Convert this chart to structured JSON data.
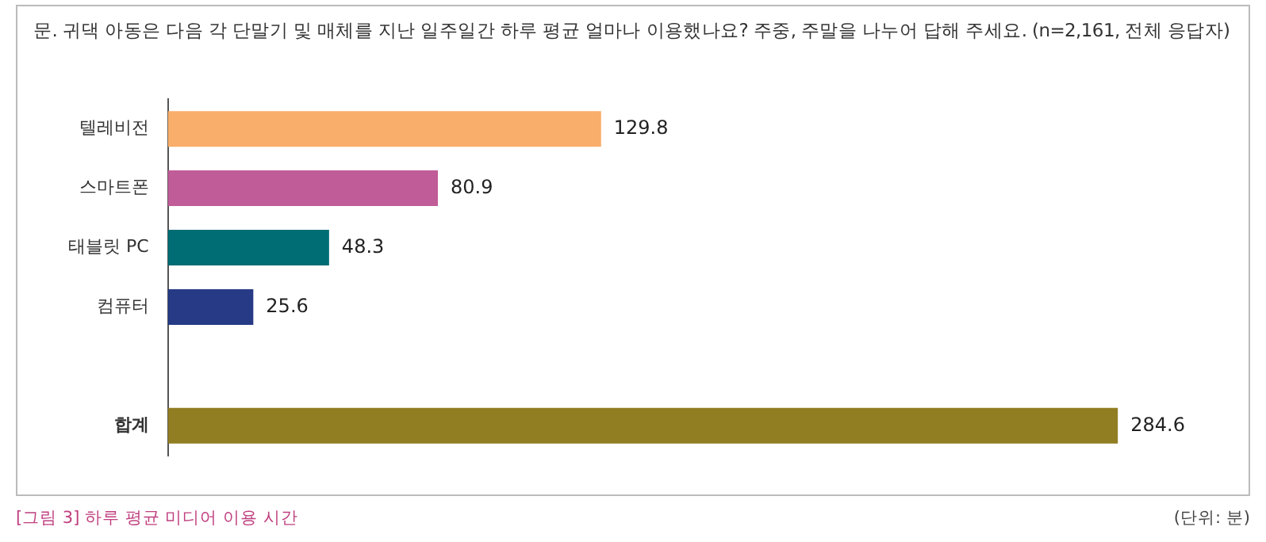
{
  "chart_data": {
    "type": "bar",
    "orientation": "horizontal",
    "title": "문. 귀댁 아동은 다음 각 단말기 및 매체를 지난 일주일간 하루 평균 얼마나 이용했나요? 주중, 주말을 나누어 답해 주세요. (n=2,161, 전체 응답자)",
    "categories": [
      "텔레비전",
      "스마트폰",
      "태블릿 PC",
      "컴퓨터",
      null,
      "합계"
    ],
    "values": [
      129.8,
      80.9,
      48.3,
      25.6,
      null,
      284.6
    ],
    "colors": [
      "#f9ae6b",
      "#c05c98",
      "#006d74",
      "#263a85",
      "#ffffff",
      "#917d22"
    ],
    "data_labels": true,
    "grid": false,
    "legend": false,
    "annotations": [
      "[그림 3] 하루 평균 미디어 이용 시간",
      "(단위: 분)"
    ]
  }
}
